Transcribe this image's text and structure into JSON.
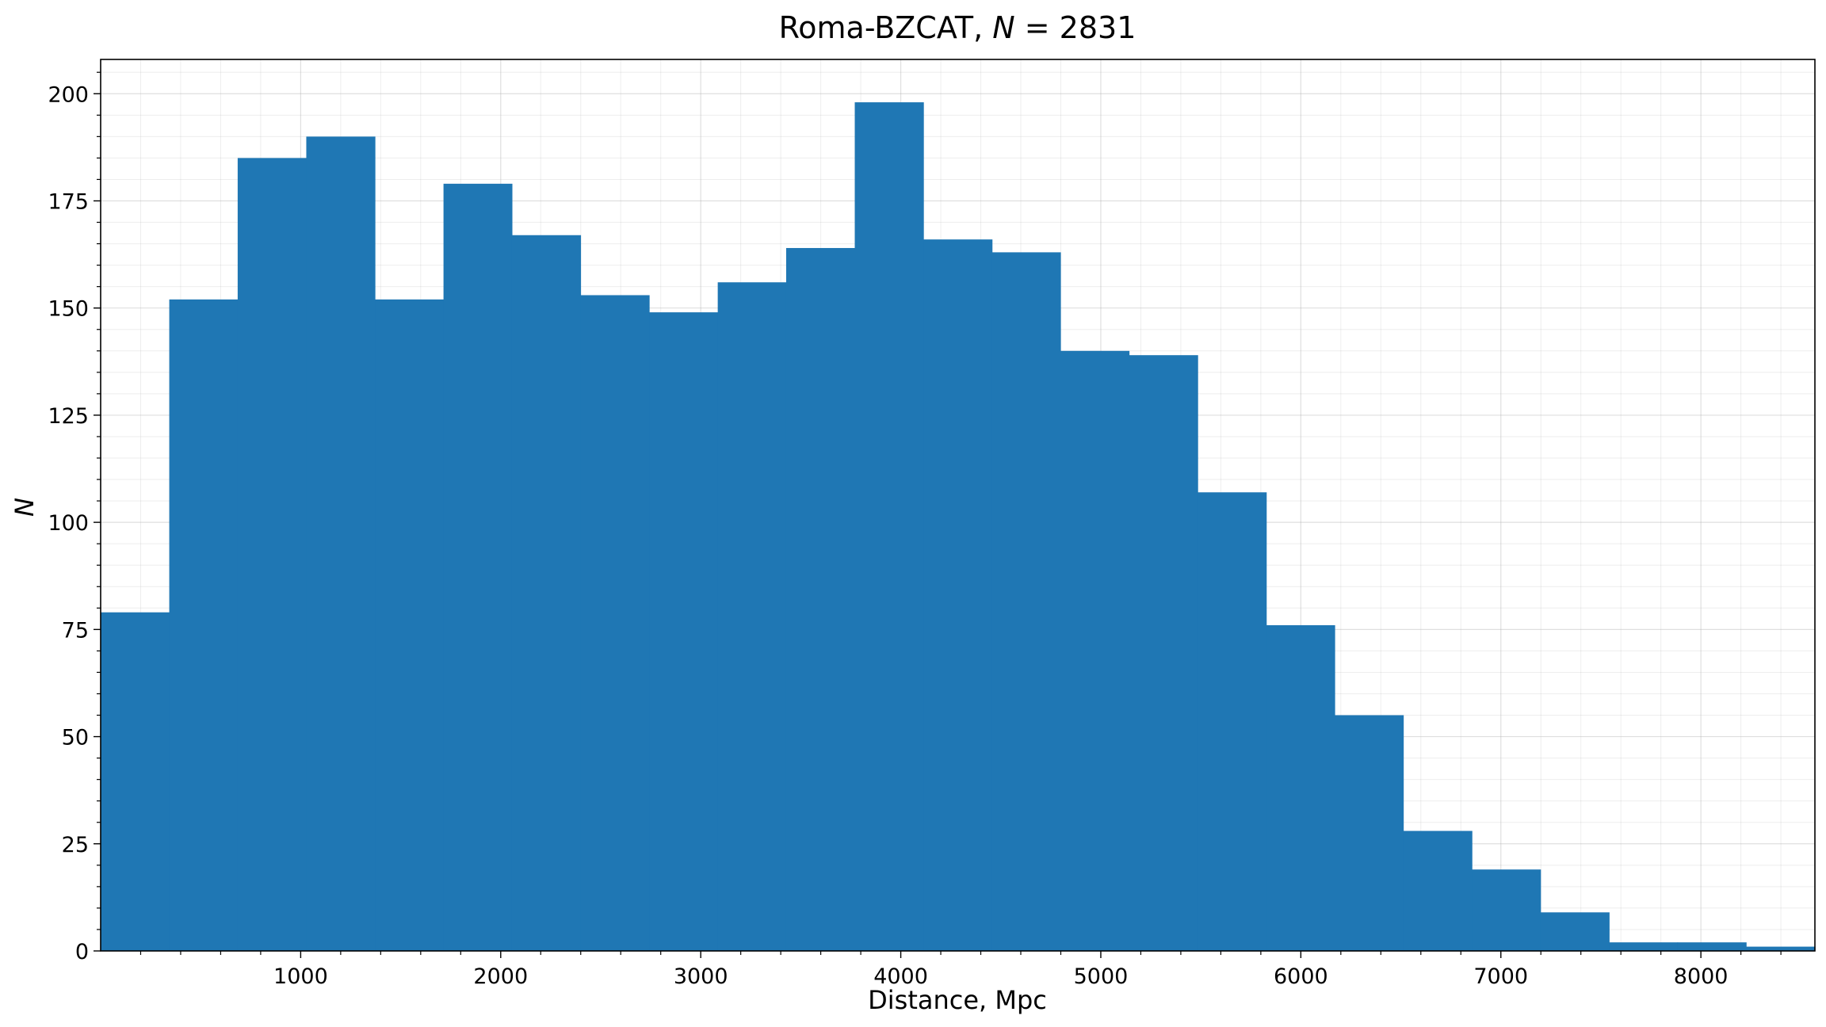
{
  "chart_data": {
    "type": "bar",
    "title": "Roma-BZCAT, N = 2831",
    "title_parts": {
      "prefix": "Roma-BZCAT, ",
      "italic_var": "N",
      "suffix": " = 2831"
    },
    "xlabel": "Distance, Mpc",
    "ylabel": "N",
    "xlim": [
      0,
      8570
    ],
    "ylim": [
      0,
      208
    ],
    "x_ticks": [
      1000,
      2000,
      3000,
      4000,
      5000,
      6000,
      7000,
      8000
    ],
    "y_ticks": [
      0,
      25,
      50,
      75,
      100,
      125,
      150,
      175,
      200
    ],
    "grid": true,
    "bin_edges": [
      0,
      343,
      685,
      1028,
      1371,
      1714,
      2056,
      2399,
      2742,
      3085,
      3427,
      3770,
      4113,
      4456,
      4798,
      5141,
      5484,
      5827,
      6169,
      6512,
      6855,
      7198,
      7541,
      7883,
      8226,
      8570
    ],
    "values": [
      79,
      152,
      185,
      190,
      152,
      179,
      167,
      153,
      149,
      156,
      164,
      198,
      166,
      163,
      140,
      139,
      107,
      76,
      55,
      28,
      19,
      9,
      2,
      2,
      1
    ],
    "bar_color": "#1f77b4",
    "grid_color": "#b0b0b0"
  }
}
